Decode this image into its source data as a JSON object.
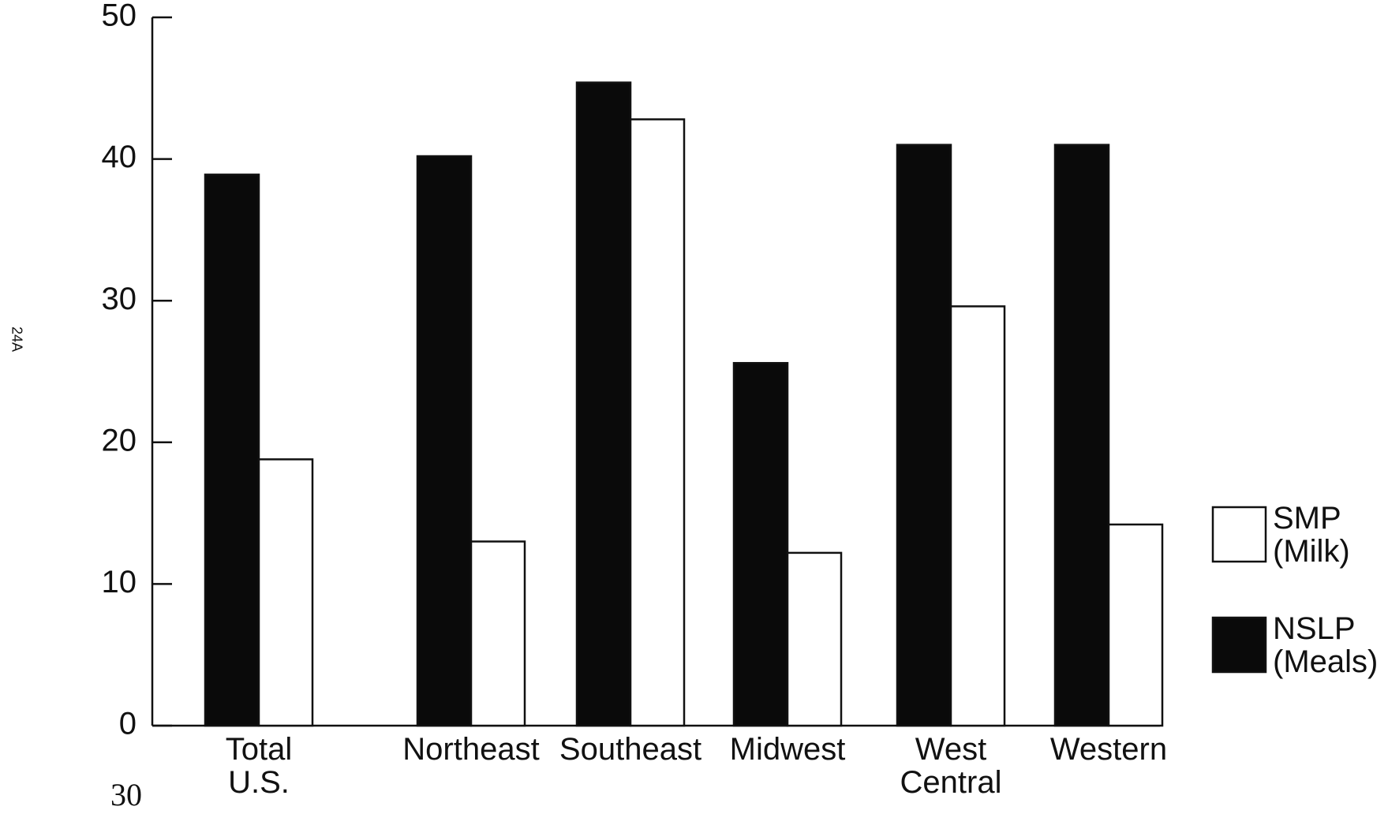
{
  "chart_data": {
    "type": "bar",
    "categories": [
      "Total U.S.",
      "Northeast",
      "Southeast",
      "Midwest",
      "West Central",
      "Western"
    ],
    "series": [
      {
        "name": "SMP (Milk)",
        "color": "#ffffff",
        "values": [
          18.8,
          13.0,
          42.8,
          12.2,
          29.6,
          14.2
        ]
      },
      {
        "name": "NSLP (Meals)",
        "color": "#0a0a0a",
        "values": [
          38.9,
          40.2,
          45.4,
          25.6,
          41.0,
          41.0
        ]
      }
    ],
    "ylim": [
      0,
      50
    ],
    "yticks": [
      0,
      10,
      20,
      30,
      40,
      50
    ],
    "side_note": "24A",
    "page_number": "30"
  }
}
